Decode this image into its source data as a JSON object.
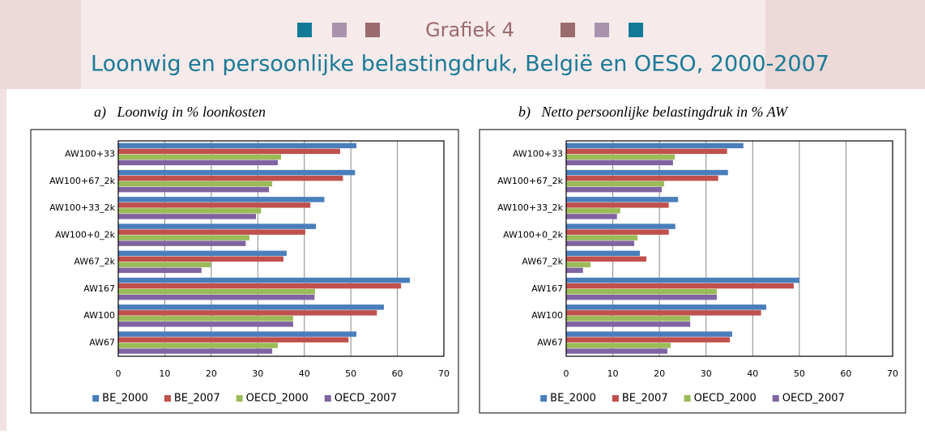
{
  "header": {
    "label": "Grafiek 4",
    "title": "Loonwig en persoonlijke belastingdruk, België en OESO, 2000-2007"
  },
  "chart_data": [
    {
      "type": "bar",
      "orientation": "horizontal",
      "title": "a)   Loonwig in % loonkosten",
      "categories": [
        "AW100+33",
        "AW100+67_2k",
        "AW100+33_2k",
        "AW100+0_2k",
        "AW67_2k",
        "AW167",
        "AW100",
        "AW67"
      ],
      "series": [
        {
          "name": "BE_2000",
          "color": "#4a7ebb",
          "values": [
            51.2,
            50.9,
            44.3,
            42.5,
            36.2,
            62.7,
            57.1,
            51.2
          ]
        },
        {
          "name": "BE_2007",
          "color": "#c0504d",
          "values": [
            47.7,
            48.3,
            41.3,
            40.2,
            35.5,
            60.8,
            55.6,
            49.5
          ]
        },
        {
          "name": "OECD_2000",
          "color": "#9bbb59",
          "values": [
            35,
            33.1,
            30.7,
            28.2,
            19.9,
            42.3,
            37.6,
            34.3
          ]
        },
        {
          "name": "OECD_2007",
          "color": "#8064a2",
          "values": [
            34.3,
            32.4,
            29.6,
            27.4,
            17.9,
            42.2,
            37.6,
            33.1
          ]
        }
      ],
      "xlim": [
        0,
        70
      ],
      "xticks": [
        0,
        10,
        20,
        30,
        40,
        50,
        60,
        70
      ],
      "grid": true,
      "legend": "bottom"
    },
    {
      "type": "bar",
      "orientation": "horizontal",
      "title": "b)   Netto persoonlijke belastingdruk in % AW",
      "categories": [
        "AW100+33",
        "AW100+67_2k",
        "AW100+33_2k",
        "AW100+0_2k",
        "AW67_2k",
        "AW167",
        "AW100",
        "AW67"
      ],
      "series": [
        {
          "name": "BE_2000",
          "color": "#4a7ebb",
          "values": [
            38,
            34.7,
            24,
            23.4,
            15.8,
            50,
            42.9,
            35.6
          ]
        },
        {
          "name": "BE_2007",
          "color": "#c0504d",
          "values": [
            34.5,
            32.6,
            22,
            22,
            17.2,
            48.8,
            41.8,
            35.1
          ]
        },
        {
          "name": "OECD_2000",
          "color": "#9bbb59",
          "values": [
            23.3,
            21,
            11.6,
            15.3,
            5.2,
            32.3,
            26.6,
            22.4
          ]
        },
        {
          "name": "OECD_2007",
          "color": "#8064a2",
          "values": [
            22.9,
            20.5,
            10.9,
            14.6,
            3.6,
            32.3,
            26.6,
            21.7
          ]
        }
      ],
      "xlim": [
        0,
        70
      ],
      "xticks": [
        0,
        10,
        20,
        30,
        40,
        50,
        60,
        70
      ],
      "grid": true,
      "legend": "bottom"
    }
  ]
}
